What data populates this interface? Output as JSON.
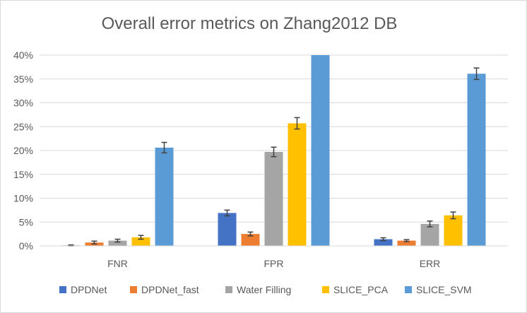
{
  "chart_data": {
    "type": "bar",
    "title": "Overall error metrics on Zhang2012 DB",
    "xlabel": "",
    "ylabel": "",
    "categories": [
      "FNR",
      "FPR",
      "ERR"
    ],
    "ylim": [
      0,
      40
    ],
    "yticks": [
      0,
      5,
      10,
      15,
      20,
      25,
      30,
      35,
      40
    ],
    "ytick_labels": [
      "0%",
      "5%",
      "10%",
      "15%",
      "20%",
      "25%",
      "30%",
      "35%",
      "40%"
    ],
    "grid": true,
    "legend_position": "bottom",
    "series": [
      {
        "name": "DPDNet",
        "color": "#4472C4",
        "values": [
          0.1,
          6.9,
          1.4
        ],
        "errors": [
          0.1,
          0.6,
          0.3
        ]
      },
      {
        "name": "DPDNet_fast",
        "color": "#ED7D31",
        "values": [
          0.7,
          2.5,
          1.1
        ],
        "errors": [
          0.3,
          0.4,
          0.2
        ]
      },
      {
        "name": "Water Filling",
        "color": "#A5A5A5",
        "values": [
          1.1,
          19.7,
          4.6
        ],
        "errors": [
          0.3,
          1.0,
          0.6
        ]
      },
      {
        "name": "SLICE_PCA",
        "color": "#FFC000",
        "values": [
          1.8,
          25.7,
          6.4
        ],
        "errors": [
          0.4,
          1.2,
          0.7
        ]
      },
      {
        "name": "SLICE_SVM",
        "color": "#5B9BD5",
        "values": [
          20.6,
          40.0,
          36.1
        ],
        "errors": [
          1.1,
          0,
          1.2
        ]
      }
    ]
  }
}
